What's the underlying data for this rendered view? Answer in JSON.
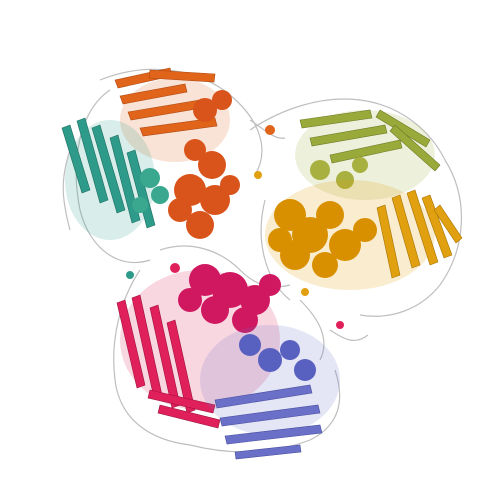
{
  "image": {
    "subject": "protein-ribbon-structure",
    "background": "#ffffff"
  },
  "chains": [
    {
      "name": "chain-orange",
      "color": "#e0641a",
      "helix": "#d9541a"
    },
    {
      "name": "chain-teal",
      "color": "#2e9b8a",
      "helix": "#3aa88e"
    },
    {
      "name": "chain-olive",
      "color": "#9aaa3a",
      "helix": "#a8b040"
    },
    {
      "name": "chain-gold",
      "color": "#e0a010",
      "helix": "#d99000"
    },
    {
      "name": "chain-crimson",
      "color": "#e0205a",
      "helix": "#d01860"
    },
    {
      "name": "chain-slate",
      "color": "#6a70c8",
      "helix": "#5860c0"
    }
  ],
  "loop_color": "#b8b8b8"
}
